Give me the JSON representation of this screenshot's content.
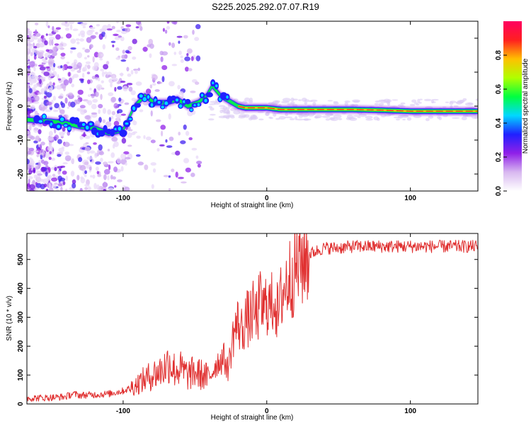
{
  "title": "S225.2025.292.07.07.R19",
  "chart_data": [
    {
      "type": "heatmap",
      "xlabel": "Height of straight line (km)",
      "ylabel": "Frequency (Hz)",
      "xlim": [
        -167,
        147
      ],
      "ylim": [
        -25,
        25
      ],
      "xticks": [
        -100,
        0,
        100
      ],
      "yticks": [
        -20,
        -10,
        0,
        10,
        20
      ],
      "grid": false,
      "ridge": {
        "x": [
          -167,
          -150,
          -140,
          -130,
          -120,
          -110,
          -100,
          -92,
          -85,
          -78,
          -70,
          -62,
          -55,
          -48,
          -42,
          -38,
          -34,
          -32,
          -28,
          -24,
          -20,
          -15,
          -10,
          -5,
          0,
          10,
          20,
          40,
          60,
          80,
          100,
          120,
          147
        ],
        "y": [
          -4,
          -4.5,
          -5,
          -6,
          -6.5,
          -8,
          -7,
          0,
          3,
          1,
          1,
          2,
          0,
          1,
          3,
          6,
          4,
          3,
          2,
          1,
          0,
          -0.5,
          -0.5,
          -0.5,
          -0.5,
          -1,
          -1,
          -1,
          -1,
          -1.2,
          -1.5,
          -1.5,
          -1.5
        ]
      },
      "colorbar": {
        "label": "Normalized spectral amplitude",
        "ticks": [
          "0.0",
          "0.2",
          "0.4",
          "0.6",
          "0.8"
        ],
        "tick_values": [
          0.0,
          0.2,
          0.4,
          0.6,
          0.8
        ],
        "range": [
          0,
          1
        ],
        "colors": [
          "#ffffff",
          "#d8b8f0",
          "#9020e8",
          "#2020ff",
          "#00d8ff",
          "#00ff40",
          "#b0ff00",
          "#ffc000",
          "#ff2020",
          "#ff0060"
        ]
      }
    },
    {
      "type": "line",
      "xlabel": "Height of straight line (km)",
      "ylabel": "SNR (10 * v/v)",
      "xlim": [
        -167,
        147
      ],
      "ylim": [
        0,
        590
      ],
      "xticks": [
        -100,
        0,
        100
      ],
      "yticks": [
        0,
        100,
        200,
        300,
        400,
        500
      ],
      "grid": false,
      "series": [
        {
          "name": "SNR",
          "color": "#e03030",
          "x": [
            -167,
            -150,
            -140,
            -135,
            -130,
            -120,
            -110,
            -100,
            -95,
            -90,
            -85,
            -80,
            -75,
            -70,
            -68,
            -65,
            -60,
            -55,
            -50,
            -45,
            -40,
            -35,
            -30,
            -27,
            -25,
            -23,
            -20,
            -17,
            -15,
            -12,
            -10,
            -7,
            -5,
            -2,
            0,
            3,
            5,
            8,
            10,
            12,
            15,
            18,
            20,
            25,
            30,
            35,
            40,
            50,
            60,
            70,
            80,
            90,
            100,
            110,
            120,
            130,
            147
          ],
          "y": [
            20,
            22,
            25,
            35,
            30,
            32,
            35,
            45,
            55,
            70,
            85,
            100,
            110,
            130,
            150,
            120,
            120,
            100,
            110,
            100,
            90,
            140,
            160,
            120,
            180,
            250,
            280,
            250,
            300,
            290,
            320,
            300,
            350,
            320,
            360,
            330,
            380,
            300,
            370,
            400,
            430,
            450,
            470,
            500,
            520,
            530,
            540,
            540,
            545,
            545,
            545,
            545,
            545,
            545,
            545,
            545,
            545
          ]
        }
      ]
    }
  ]
}
